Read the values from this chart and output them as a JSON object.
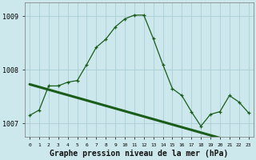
{
  "title": "Graphe pression niveau de la mer (hPa)",
  "bg_color": "#cce8ec",
  "grid_color": "#aacdd4",
  "line_color": "#1a5c1a",
  "line_color2": "#1a5c1a",
  "x_labels": [
    "0",
    "1",
    "2",
    "3",
    "4",
    "5",
    "6",
    "7",
    "8",
    "9",
    "10",
    "11",
    "12",
    "13",
    "14",
    "15",
    "16",
    "17",
    "18",
    "19",
    "20",
    "21",
    "22",
    "23"
  ],
  "hours": [
    0,
    1,
    2,
    3,
    4,
    5,
    6,
    7,
    8,
    9,
    10,
    11,
    12,
    13,
    14,
    15,
    16,
    17,
    18,
    19,
    20,
    21,
    22,
    23
  ],
  "pressure": [
    1007.15,
    1007.25,
    1007.7,
    1007.7,
    1007.77,
    1007.8,
    1008.1,
    1008.42,
    1008.57,
    1008.8,
    1008.95,
    1009.02,
    1009.02,
    1008.58,
    1008.1,
    1007.65,
    1007.52,
    1007.22,
    1006.95,
    1007.17,
    1007.22,
    1007.52,
    1007.4,
    1007.2
  ],
  "trend": [
    1007.73,
    1007.68,
    1007.63,
    1007.58,
    1007.53,
    1007.48,
    1007.43,
    1007.38,
    1007.33,
    1007.28,
    1007.23,
    1007.18,
    1007.13,
    1007.08,
    1007.03,
    1006.98,
    1006.93,
    1006.88,
    1006.83,
    1006.78,
    1006.73,
    1006.68,
    1006.63,
    1006.58
  ],
  "ylim": [
    1006.75,
    1009.25
  ],
  "yticks": [
    1007,
    1008,
    1009
  ],
  "tick_fontsize": 6,
  "title_fontsize": 7
}
